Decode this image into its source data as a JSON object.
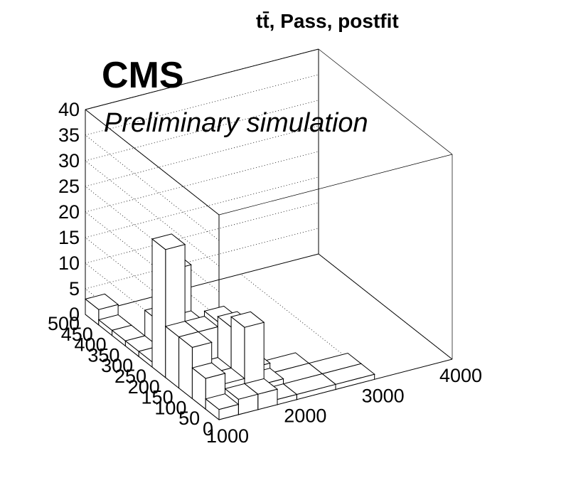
{
  "header": {
    "title": "tt̄, Pass, postfit",
    "experiment": "CMS",
    "status": "Preliminary simulation"
  },
  "chart_data": {
    "type": "lego",
    "title": "tt̄, Pass, postfit",
    "xlabel": "",
    "ylabel": "",
    "zlabel": "",
    "x_range": [
      1000,
      4000
    ],
    "y_range": [
      0,
      500
    ],
    "z_range": [
      0,
      40
    ],
    "x_ticks": [
      "1000",
      "2000",
      "3000",
      "4000"
    ],
    "y_ticks": [
      "0",
      "50",
      "100",
      "150",
      "200",
      "250",
      "300",
      "350",
      "400",
      "450",
      "500"
    ],
    "z_ticks": [
      "0",
      "5",
      "10",
      "15",
      "20",
      "25",
      "30",
      "35",
      "40"
    ],
    "grid": true,
    "bins": [
      {
        "x": [
          1000,
          1250
        ],
        "y": [
          0,
          50
        ],
        "z": 2
      },
      {
        "x": [
          1000,
          1250
        ],
        "y": [
          50,
          100
        ],
        "z": 6
      },
      {
        "x": [
          1000,
          1250
        ],
        "y": [
          100,
          150
        ],
        "z": 10
      },
      {
        "x": [
          1000,
          1250
        ],
        "y": [
          150,
          200
        ],
        "z": 10
      },
      {
        "x": [
          1000,
          1250
        ],
        "y": [
          200,
          250
        ],
        "z": 25
      },
      {
        "x": [
          1000,
          1250
        ],
        "y": [
          250,
          300
        ],
        "z": 1
      },
      {
        "x": [
          1000,
          1250
        ],
        "y": [
          300,
          350
        ],
        "z": 1
      },
      {
        "x": [
          1000,
          1250
        ],
        "y": [
          350,
          400
        ],
        "z": 1
      },
      {
        "x": [
          1000,
          1250
        ],
        "y": [
          400,
          450
        ],
        "z": 1
      },
      {
        "x": [
          1000,
          1250
        ],
        "y": [
          450,
          500
        ],
        "z": 3
      },
      {
        "x": [
          1250,
          1500
        ],
        "y": [
          0,
          50
        ],
        "z": 3
      },
      {
        "x": [
          1250,
          1500
        ],
        "y": [
          50,
          100
        ],
        "z": 4
      },
      {
        "x": [
          1250,
          1500
        ],
        "y": [
          100,
          150
        ],
        "z": 4
      },
      {
        "x": [
          1250,
          1500
        ],
        "y": [
          150,
          200
        ],
        "z": 10
      },
      {
        "x": [
          1250,
          1500
        ],
        "y": [
          200,
          250
        ],
        "z": 9
      },
      {
        "x": [
          1250,
          1500
        ],
        "y": [
          250,
          300
        ],
        "z": 18
      },
      {
        "x": [
          1250,
          1500
        ],
        "y": [
          300,
          350
        ],
        "z": 6
      },
      {
        "x": [
          1500,
          1750
        ],
        "y": [
          0,
          50
        ],
        "z": 3
      },
      {
        "x": [
          1500,
          1750
        ],
        "y": [
          50,
          100
        ],
        "z": 14
      },
      {
        "x": [
          1500,
          1750
        ],
        "y": [
          100,
          150
        ],
        "z": 12
      },
      {
        "x": [
          1500,
          1750
        ],
        "y": [
          150,
          200
        ],
        "z": 11
      },
      {
        "x": [
          1500,
          1750
        ],
        "y": [
          200,
          250
        ],
        "z": 7
      },
      {
        "x": [
          1750,
          2000
        ],
        "y": [
          0,
          50
        ],
        "z": 1
      },
      {
        "x": [
          1750,
          2000
        ],
        "y": [
          50,
          100
        ],
        "z": 2
      },
      {
        "x": [
          1750,
          2000
        ],
        "y": [
          100,
          150
        ],
        "z": 3
      },
      {
        "x": [
          2000,
          2500
        ],
        "y": [
          0,
          50
        ],
        "z": 1
      },
      {
        "x": [
          2000,
          2500
        ],
        "y": [
          50,
          100
        ],
        "z": 1
      },
      {
        "x": [
          2000,
          2500
        ],
        "y": [
          100,
          150
        ],
        "z": 1
      },
      {
        "x": [
          2500,
          3000
        ],
        "y": [
          0,
          50
        ],
        "z": 1
      },
      {
        "x": [
          2500,
          3000
        ],
        "y": [
          50,
          100
        ],
        "z": 1
      }
    ]
  }
}
